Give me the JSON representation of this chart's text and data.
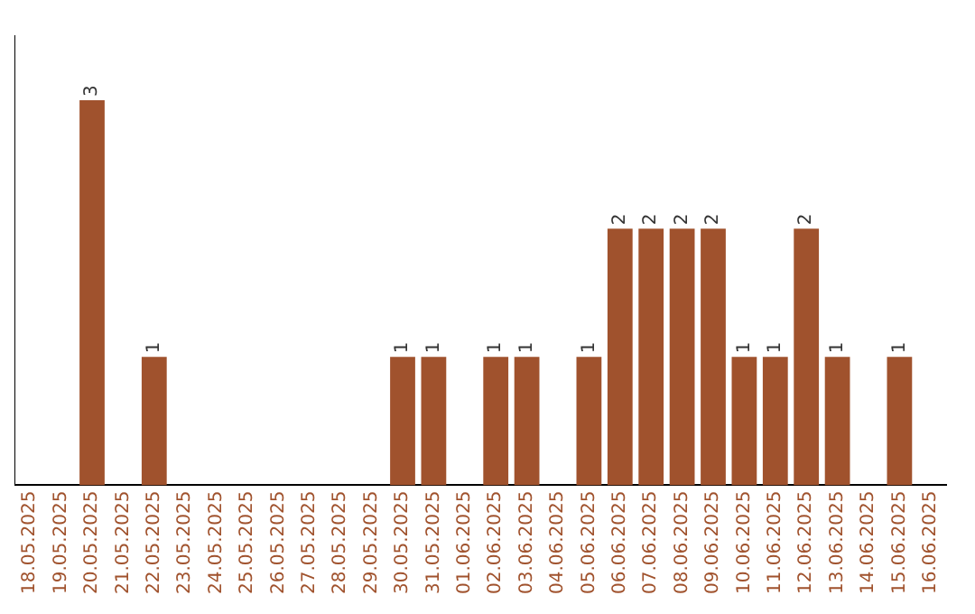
{
  "chart_data": {
    "type": "bar",
    "categories": [
      "18.05.2025",
      "19.05.2025",
      "20.05.2025",
      "21.05.2025",
      "22.05.2025",
      "23.05.2025",
      "24.05.2025",
      "25.05.2025",
      "26.05.2025",
      "27.05.2025",
      "28.05.2025",
      "29.05.2025",
      "30.05.2025",
      "31.05.2025",
      "01.06.2025",
      "02.06.2025",
      "03.06.2025",
      "04.06.2025",
      "05.06.2025",
      "06.06.2025",
      "07.06.2025",
      "08.06.2025",
      "09.06.2025",
      "10.06.2025",
      "11.06.2025",
      "12.06.2025",
      "13.06.2025",
      "14.06.2025",
      "15.06.2025",
      "16.06.2025"
    ],
    "values": [
      0,
      0,
      3,
      0,
      1,
      0,
      0,
      0,
      0,
      0,
      0,
      0,
      1,
      1,
      0,
      1,
      1,
      0,
      1,
      2,
      2,
      2,
      2,
      1,
      1,
      2,
      1,
      0,
      1,
      0
    ],
    "value_labels": [
      null,
      null,
      "3",
      null,
      "1",
      null,
      null,
      null,
      null,
      null,
      null,
      null,
      "1",
      "1",
      null,
      "1",
      "1",
      null,
      "1",
      "2",
      "2",
      "2",
      "2",
      "1",
      "1",
      "2",
      "1",
      null,
      "1",
      null
    ],
    "color": "#a0522d",
    "grid": false,
    "legend": false,
    "tick_labels": "x"
  }
}
